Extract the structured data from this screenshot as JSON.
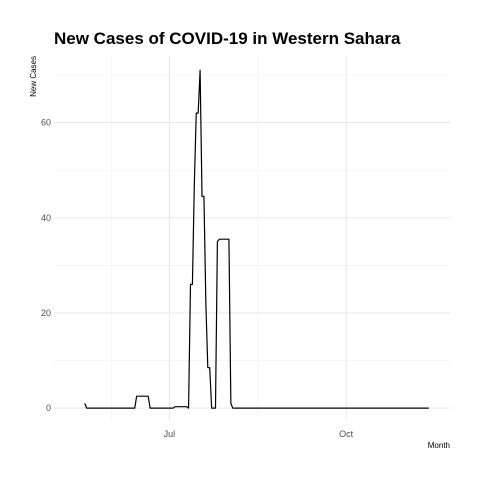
{
  "chart_data": {
    "type": "line",
    "title": "New Cases of COVID-19 in Western Sahara",
    "xlabel": "Month",
    "ylabel": "New Cases",
    "xlim": [
      "2020-05-02",
      "2020-11-24"
    ],
    "ylim": [
      -2.5,
      74
    ],
    "y_ticks": [
      0,
      20,
      40,
      60
    ],
    "x_ticks": [
      {
        "date": "2020-07-01",
        "label": "Jul"
      },
      {
        "date": "2020-10-01",
        "label": "Oct"
      }
    ],
    "x_minor_ticks": [
      "2020-06-01",
      "2020-08-16"
    ],
    "y_minor_ticks": [
      10,
      30,
      50,
      70
    ],
    "grid": true,
    "legend": "none",
    "line_color": "#000000",
    "series": [
      {
        "points": [
          [
            "2020-05-18",
            1
          ],
          [
            "2020-05-19",
            0
          ],
          [
            "2020-06-13",
            0
          ],
          [
            "2020-06-14",
            2.5
          ],
          [
            "2020-06-20",
            2.5
          ],
          [
            "2020-06-21",
            0
          ],
          [
            "2020-07-03",
            0
          ],
          [
            "2020-07-04",
            0.3
          ],
          [
            "2020-07-10",
            0.3
          ],
          [
            "2020-07-11",
            0
          ],
          [
            "2020-07-12",
            26
          ],
          [
            "2020-07-13",
            26
          ],
          [
            "2020-07-14",
            47
          ],
          [
            "2020-07-15",
            62
          ],
          [
            "2020-07-16",
            62
          ],
          [
            "2020-07-17",
            71
          ],
          [
            "2020-07-18",
            44.5
          ],
          [
            "2020-07-19",
            44.5
          ],
          [
            "2020-07-20",
            22
          ],
          [
            "2020-07-21",
            8.5
          ],
          [
            "2020-07-22",
            8.5
          ],
          [
            "2020-07-23",
            0
          ],
          [
            "2020-07-25",
            0
          ],
          [
            "2020-07-26",
            35
          ],
          [
            "2020-07-27",
            35.5
          ],
          [
            "2020-08-01",
            35.5
          ],
          [
            "2020-08-02",
            1
          ],
          [
            "2020-08-03",
            0
          ],
          [
            "2020-11-13",
            0
          ]
        ]
      }
    ]
  }
}
